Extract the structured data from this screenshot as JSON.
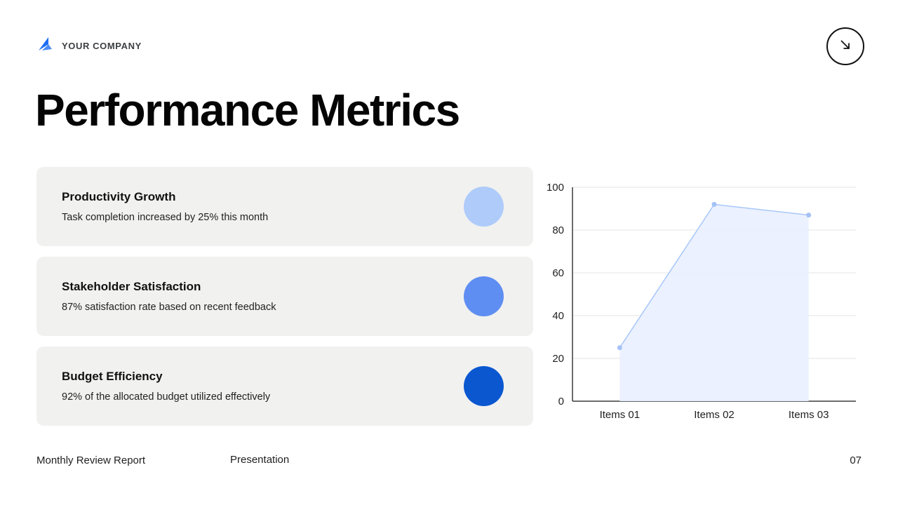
{
  "header": {
    "company_name": "YOUR COMPANY",
    "logo_icon": "company-logo",
    "nav_icon": "arrow-down-right"
  },
  "title": "Performance Metrics",
  "metrics": [
    {
      "title": "Productivity Growth",
      "description": "Task completion increased by 25% this month",
      "dot_color": "#aecbfa"
    },
    {
      "title": "Stakeholder Satisfaction",
      "description": "87% satisfaction rate based on recent feedback",
      "dot_color": "#5f8ef2"
    },
    {
      "title": "Budget Efficiency",
      "description": "92% of the allocated budget utilized effectively",
      "dot_color": "#0b57d0"
    }
  ],
  "chart_data": {
    "type": "area",
    "categories": [
      "Items 01",
      "Items 02",
      "Items 03"
    ],
    "values": [
      25,
      92,
      87
    ],
    "title": "",
    "xlabel": "",
    "ylabel": "",
    "ylim": [
      0,
      100
    ],
    "yticks": [
      0,
      20,
      40,
      60,
      80,
      100
    ],
    "grid": true,
    "legend": false,
    "line_color": "#a8c7fa",
    "fill_color": "#e9f0fe",
    "point_color": "#a4c2f7",
    "axis_color": "#3c3c3c",
    "grid_color": "#e6e6e6"
  },
  "footer": {
    "left": "Monthly Review Report",
    "center": "Presentation",
    "page_number": "07"
  }
}
